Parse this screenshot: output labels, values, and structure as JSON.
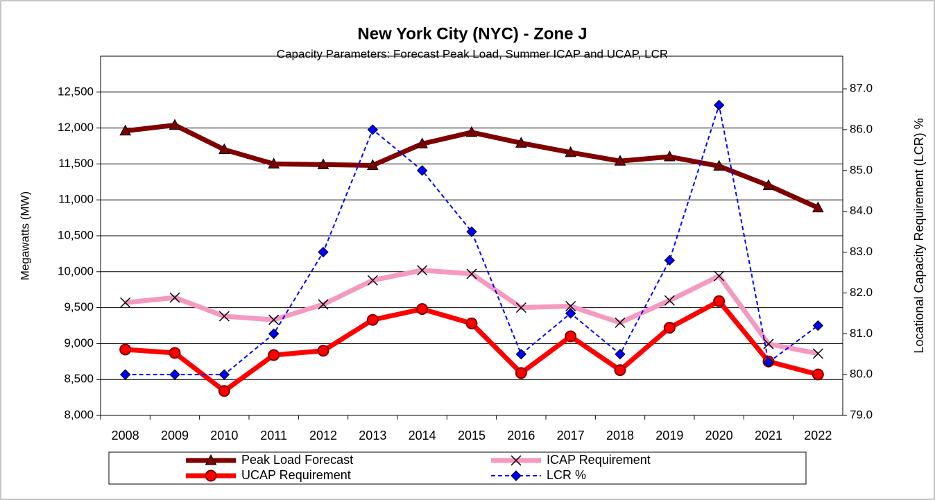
{
  "chart_data": {
    "type": "line",
    "title": "New York City (NYC) - Zone J",
    "subtitle": "Capacity Parameters: Forecast Peak Load, Summer ICAP and UCAP, LCR",
    "y_label": "Megawatts (MW)",
    "y2_label": "Locational Capacity Requirement (LCR) %",
    "categories": [
      "2008",
      "2009",
      "2010",
      "2011",
      "2012",
      "2013",
      "2014",
      "2015",
      "2016",
      "2017",
      "2018",
      "2019",
      "2020",
      "2021",
      "2022"
    ],
    "ylim": [
      8000,
      13000
    ],
    "yticks": [
      {
        "value": 8000,
        "label": "8,000"
      },
      {
        "value": 8500,
        "label": "8,500"
      },
      {
        "value": 9000,
        "label": "9,000"
      },
      {
        "value": 9500,
        "label": "9,500"
      },
      {
        "value": 10000,
        "label": "10,000"
      },
      {
        "value": 10500,
        "label": "10,500"
      },
      {
        "value": 11000,
        "label": "11,000"
      },
      {
        "value": 11500,
        "label": "11,500"
      },
      {
        "value": 12000,
        "label": "12,000"
      },
      {
        "value": 12500,
        "label": "12,500"
      }
    ],
    "y2lim": [
      79,
      87.8
    ],
    "y2ticks": [
      {
        "value": 79,
        "label": "79.0"
      },
      {
        "value": 80,
        "label": "80.0"
      },
      {
        "value": 81,
        "label": "81.0"
      },
      {
        "value": 82,
        "label": "82.0"
      },
      {
        "value": 83,
        "label": "83.0"
      },
      {
        "value": 84,
        "label": "84.0"
      },
      {
        "value": 85,
        "label": "85.0"
      },
      {
        "value": 86,
        "label": "86.0"
      },
      {
        "value": 87,
        "label": "87.0"
      }
    ],
    "grid": true,
    "series": [
      {
        "name": "Peak Load Forecast",
        "color": "#800000",
        "marker": "triangle",
        "values": [
          11960,
          12040,
          11700,
          11500,
          11490,
          11480,
          11780,
          11940,
          11790,
          11660,
          11540,
          11600,
          11470,
          11200,
          10890
        ]
      },
      {
        "name": "ICAP Requirement",
        "color": "#f49ac1",
        "marker": "x",
        "values": [
          9570,
          9640,
          9380,
          9330,
          9545,
          9880,
          10020,
          9970,
          9500,
          9520,
          9290,
          9600,
          9940,
          8995,
          8860
        ]
      },
      {
        "name": "UCAP Requirement",
        "color": "#ff0000",
        "marker": "circle",
        "values": [
          8917,
          8870,
          8340,
          8840,
          8900,
          9330,
          9480,
          9280,
          8590,
          9100,
          8630,
          9220,
          9590,
          8750,
          8570
        ]
      },
      {
        "name": "LCR %",
        "color": "#0000ff",
        "marker": "diamond",
        "dashed": true,
        "axis": "y2",
        "values": [
          80,
          80,
          80,
          81,
          83,
          86,
          85,
          83.5,
          80.5,
          81.5,
          80.5,
          82.8,
          86.6,
          80.3,
          81.2
        ]
      }
    ]
  }
}
